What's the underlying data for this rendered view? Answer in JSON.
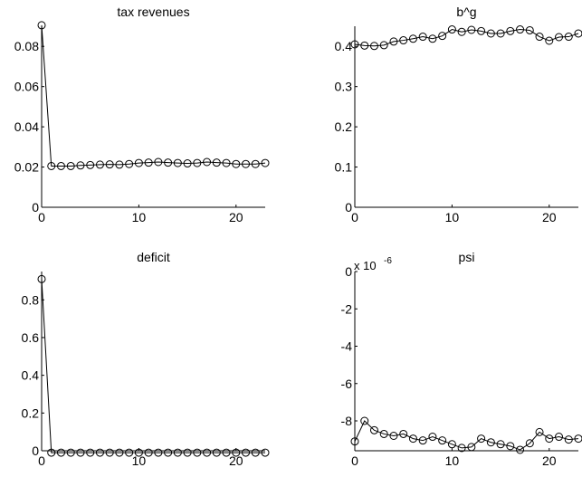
{
  "chart_data": [
    {
      "type": "line",
      "title": "tax revenues",
      "xlim": [
        0,
        23
      ],
      "ylim": [
        0,
        0.09
      ],
      "xticks": [
        0,
        10,
        20
      ],
      "xtick_labels": [
        "0",
        "10",
        "20"
      ],
      "yticks": [
        0,
        0.02,
        0.04,
        0.06,
        0.08
      ],
      "ytick_labels": [
        "0",
        "0.02",
        "0.04",
        "0.06",
        "0.08"
      ],
      "scale_label": "",
      "x": [
        0,
        1,
        2,
        3,
        4,
        5,
        6,
        7,
        8,
        9,
        10,
        11,
        12,
        13,
        14,
        15,
        16,
        17,
        18,
        19,
        20,
        21,
        22,
        23
      ],
      "values": [
        0.0905,
        0.0205,
        0.0205,
        0.0205,
        0.0208,
        0.021,
        0.0212,
        0.0213,
        0.0212,
        0.0215,
        0.022,
        0.0222,
        0.0225,
        0.0222,
        0.022,
        0.0218,
        0.022,
        0.0225,
        0.0222,
        0.022,
        0.0215,
        0.0215,
        0.0215,
        0.022
      ],
      "marker": "circle"
    },
    {
      "type": "line",
      "title": "b^g",
      "xlim": [
        0,
        23
      ],
      "ylim": [
        0,
        0.45
      ],
      "xticks": [
        0,
        10,
        20
      ],
      "xtick_labels": [
        "0",
        "10",
        "20"
      ],
      "yticks": [
        0,
        0.1,
        0.2,
        0.3,
        0.4
      ],
      "ytick_labels": [
        "0",
        "0.1",
        "0.2",
        "0.3",
        "0.4"
      ],
      "scale_label": "",
      "x": [
        0,
        1,
        2,
        3,
        4,
        5,
        6,
        7,
        8,
        9,
        10,
        11,
        12,
        13,
        14,
        15,
        16,
        17,
        18,
        19,
        20,
        21,
        22,
        23
      ],
      "values": [
        0.405,
        0.402,
        0.401,
        0.403,
        0.412,
        0.415,
        0.419,
        0.424,
        0.419,
        0.426,
        0.442,
        0.436,
        0.441,
        0.438,
        0.432,
        0.432,
        0.438,
        0.442,
        0.44,
        0.424,
        0.414,
        0.423,
        0.424,
        0.432
      ],
      "marker": "circle"
    },
    {
      "type": "line",
      "title": "deficit",
      "xlim": [
        0,
        23
      ],
      "ylim": [
        0,
        0.95
      ],
      "xticks": [
        0,
        10,
        20
      ],
      "xtick_labels": [
        "0",
        "10",
        "20"
      ],
      "yticks": [
        0,
        0.2,
        0.4,
        0.6,
        0.8
      ],
      "ytick_labels": [
        "0",
        "0.2",
        "0.4",
        "0.6",
        "0.8"
      ],
      "scale_label": "",
      "x": [
        0,
        1,
        2,
        3,
        4,
        5,
        6,
        7,
        8,
        9,
        10,
        11,
        12,
        13,
        14,
        15,
        16,
        17,
        18,
        19,
        20,
        21,
        22,
        23
      ],
      "values": [
        0.91,
        -0.01,
        -0.01,
        -0.01,
        -0.01,
        -0.01,
        -0.01,
        -0.01,
        -0.01,
        -0.01,
        -0.01,
        -0.01,
        -0.01,
        -0.01,
        -0.01,
        -0.01,
        -0.01,
        -0.01,
        -0.01,
        -0.01,
        -0.01,
        -0.01,
        -0.01,
        -0.01
      ],
      "marker": "circle"
    },
    {
      "type": "line",
      "title": "psi",
      "xlim": [
        0,
        23
      ],
      "ylim": [
        -9.6,
        0
      ],
      "xticks": [
        0,
        10,
        20
      ],
      "xtick_labels": [
        "0",
        "10",
        "20"
      ],
      "yticks": [
        0,
        -2,
        -4,
        -6,
        -8
      ],
      "ytick_labels": [
        "0",
        "-2",
        "-4",
        "-6",
        "-8"
      ],
      "scale_label": "x 10",
      "scale_exponent": "-6",
      "x": [
        0,
        1,
        2,
        3,
        4,
        5,
        6,
        7,
        8,
        9,
        10,
        11,
        12,
        13,
        14,
        15,
        16,
        17,
        18,
        19,
        20,
        21,
        22,
        23
      ],
      "values": [
        -9.1,
        -8.0,
        -8.5,
        -8.7,
        -8.8,
        -8.7,
        -8.95,
        -9.05,
        -8.85,
        -9.05,
        -9.25,
        -9.45,
        -9.4,
        -8.95,
        -9.15,
        -9.25,
        -9.35,
        -9.55,
        -9.2,
        -8.6,
        -8.95,
        -8.85,
        -9.0,
        -8.95
      ],
      "marker": "circle"
    }
  ]
}
